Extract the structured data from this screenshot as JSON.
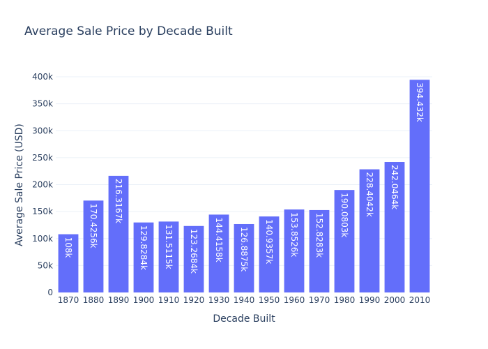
{
  "chart_data": {
    "type": "bar",
    "title": "Average Sale Price by Decade Built",
    "xlabel": "Decade Built",
    "ylabel": "Average Sale Price (USD)",
    "categories": [
      "1870",
      "1880",
      "1890",
      "1900",
      "1910",
      "1920",
      "1930",
      "1940",
      "1950",
      "1960",
      "1970",
      "1980",
      "1990",
      "2000",
      "2010"
    ],
    "values": [
      108000,
      170425.6,
      216316.7,
      129828.4,
      131511.5,
      123268.4,
      144415.8,
      126887.5,
      140935.7,
      153852.6,
      152828.3,
      190080.3,
      228404.2,
      242046.4,
      394432
    ],
    "data_labels": [
      "108k",
      "170.4256k",
      "216.3167k",
      "129.8284k",
      "131.5115k",
      "123.2684k",
      "144.4158k",
      "126.8875k",
      "140.9357k",
      "153.8526k",
      "152.8283k",
      "190.0803k",
      "228.4042k",
      "242.0464k",
      "394.432k"
    ],
    "ylim": [
      0,
      400000
    ],
    "y_ticks": [
      0,
      50000,
      100000,
      150000,
      200000,
      250000,
      300000,
      350000,
      400000
    ],
    "y_tick_labels": [
      "0",
      "50k",
      "100k",
      "150k",
      "200k",
      "250k",
      "300k",
      "350k",
      "400k"
    ],
    "grid": true,
    "bar_color": "#636efa"
  }
}
